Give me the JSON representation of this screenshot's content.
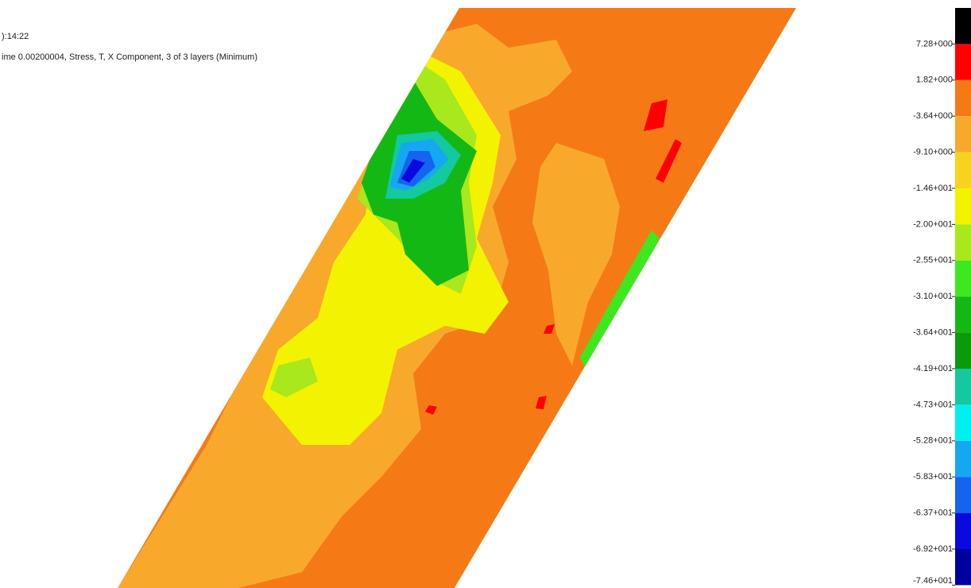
{
  "header": {
    "time": "):14:22",
    "description": "ime 0.00200004, Stress, T, X Component, 3 of 3 layers (Minimum)"
  },
  "legend": {
    "labels": [
      "7.28+000",
      "1.82+000",
      "-3.64+000",
      "-9.10+000",
      "-1.46+001",
      "-2.00+001",
      "-2.55+001",
      "-3.10+001",
      "-3.64+001",
      "-4.19+001",
      "-4.73+001",
      "-5.28+001",
      "-5.83+001",
      "-6.37+001",
      "-6.92+001",
      "-7.46+001"
    ],
    "colors": [
      "#000000",
      "#ff0000",
      "#f57a16",
      "#f8a92c",
      "#f7d21e",
      "#f3f300",
      "#a8e81c",
      "#3ee81e",
      "#14b814",
      "#0a9a0a",
      "#14c8a0",
      "#00f0f0",
      "#14a8f0",
      "#1464f0",
      "#0a0ae0",
      "#0000a0"
    ]
  }
}
